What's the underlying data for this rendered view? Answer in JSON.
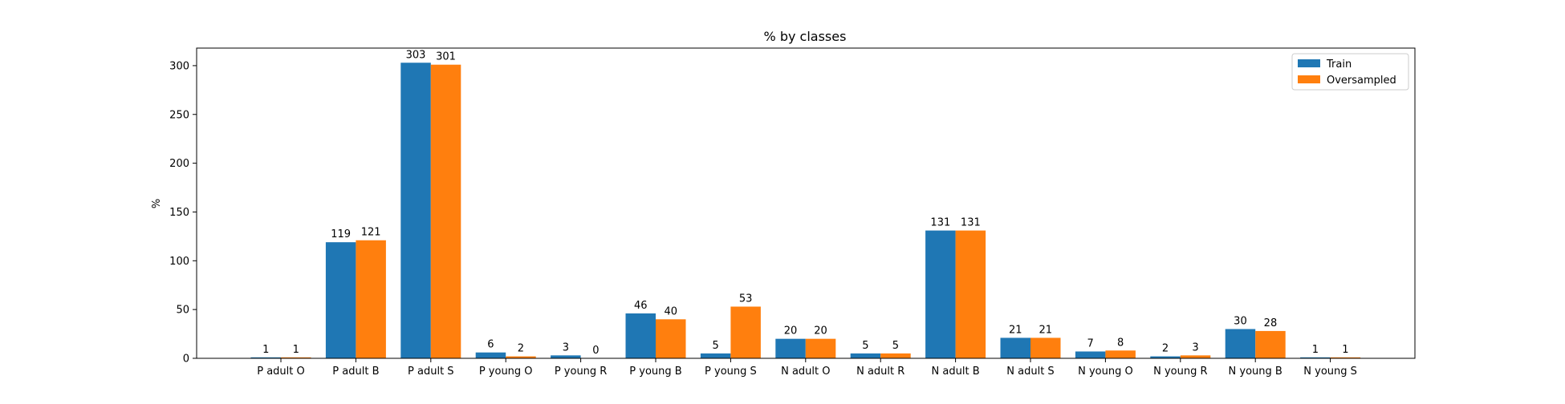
{
  "chart_data": {
    "type": "bar",
    "title": "% by classes",
    "xlabel": "",
    "ylabel": "%",
    "ylim": [
      0,
      318
    ],
    "yticks": [
      0,
      50,
      100,
      150,
      200,
      250,
      300
    ],
    "grid": false,
    "legend_position": "top-right",
    "categories": [
      "P adult O",
      "P adult B",
      "P adult S",
      "P young O",
      "P young R",
      "P young B",
      "P young S",
      "N adult O",
      "N adult R",
      "N adult B",
      "N adult S",
      "N young O",
      "N young R",
      "N young B",
      "N young S"
    ],
    "series": [
      {
        "name": "Train",
        "color": "#1f77b4",
        "values": [
          1,
          119,
          303,
          6,
          3,
          46,
          5,
          20,
          5,
          131,
          21,
          7,
          2,
          30,
          1
        ]
      },
      {
        "name": "Oversampled",
        "color": "#ff7f0e",
        "values": [
          1,
          121,
          301,
          2,
          0,
          40,
          53,
          20,
          5,
          131,
          21,
          8,
          3,
          28,
          1
        ]
      }
    ]
  }
}
